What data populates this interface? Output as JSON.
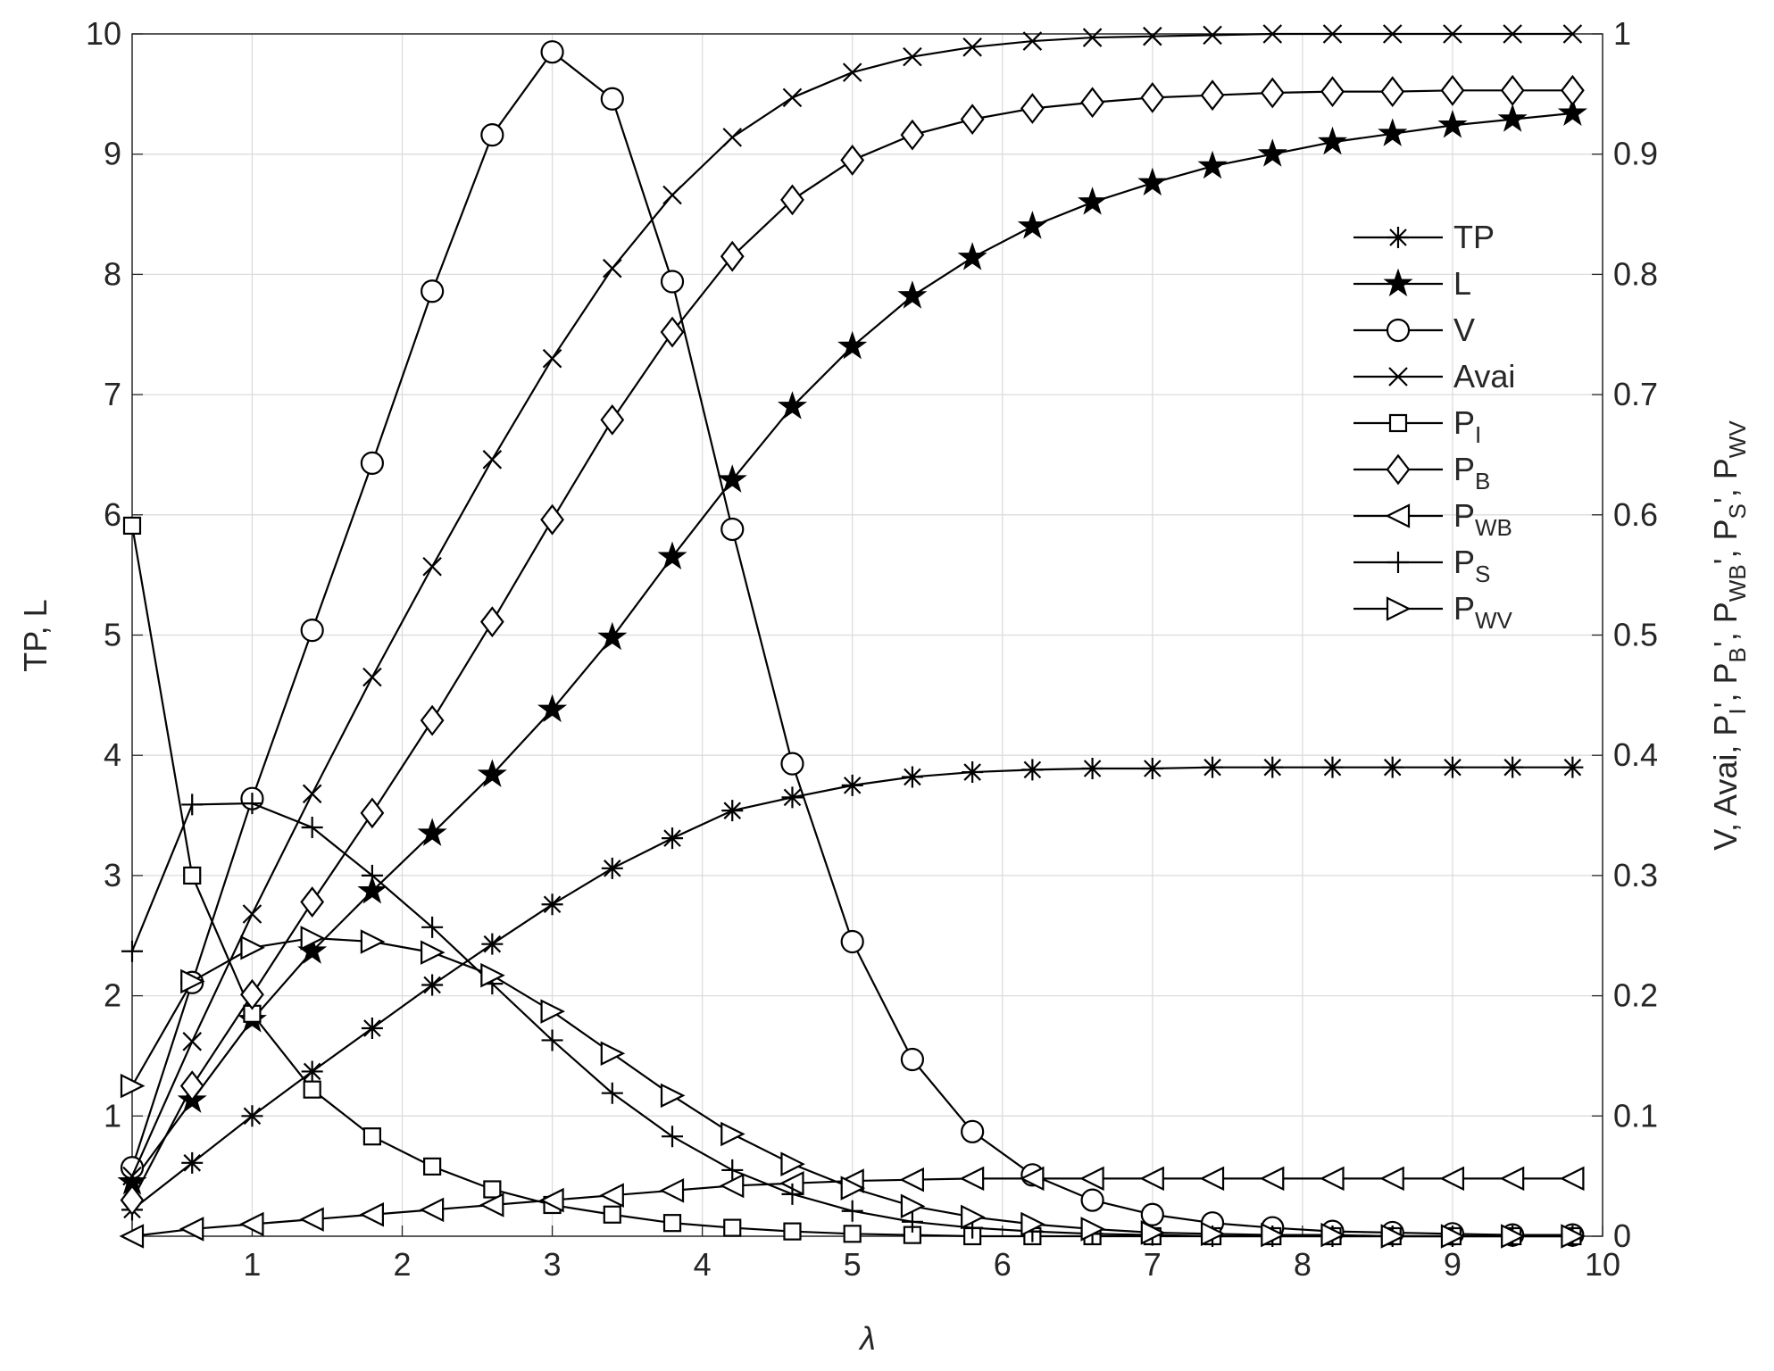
{
  "chart_data": {
    "type": "line",
    "xlabel": "λ",
    "ylabel": "TP, L",
    "y2label_parts": [
      {
        "text": "V, Avai, P",
        "sub": "I"
      },
      {
        "text": "', P",
        "sub": "B"
      },
      {
        "text": "', P",
        "sub": "WB"
      },
      {
        "text": "', P",
        "sub": "S"
      },
      {
        "text": "', P",
        "sub": "WV"
      }
    ],
    "x": [
      0.2,
      0.6,
      1.0,
      1.4,
      1.8,
      2.2,
      2.6,
      3.0,
      3.4,
      3.8,
      4.2,
      4.6,
      5.0,
      5.4,
      5.8,
      6.2,
      6.6,
      7.0,
      7.4,
      7.8,
      8.2,
      8.6,
      9.0,
      9.4,
      9.8
    ],
    "xlim": [
      0.2,
      10
    ],
    "xticks": [
      1,
      2,
      3,
      4,
      5,
      6,
      7,
      8,
      9,
      10
    ],
    "ylim": [
      0,
      10
    ],
    "yticks": [
      1,
      2,
      3,
      4,
      5,
      6,
      7,
      8,
      9,
      10
    ],
    "y2lim": [
      0,
      1
    ],
    "y2ticks": [
      0,
      0.1,
      0.2,
      0.3,
      0.4,
      0.5,
      0.6,
      0.7,
      0.8,
      0.9,
      1
    ],
    "grid": true,
    "series": [
      {
        "name": "TP",
        "marker": "asterisk",
        "color": "#000000",
        "values": [
          0.22,
          0.61,
          1.0,
          1.37,
          1.73,
          2.09,
          2.43,
          2.76,
          3.06,
          3.31,
          3.54,
          3.65,
          3.75,
          3.82,
          3.86,
          3.88,
          3.89,
          3.89,
          3.9,
          3.9,
          3.9,
          3.9,
          3.9,
          3.9,
          3.9
        ]
      },
      {
        "name": "L",
        "marker": "star",
        "color": "#000000",
        "values": [
          0.45,
          1.13,
          1.8,
          2.37,
          2.87,
          3.35,
          3.84,
          4.38,
          4.98,
          5.65,
          6.29,
          6.9,
          7.4,
          7.82,
          8.14,
          8.4,
          8.6,
          8.76,
          8.9,
          9.0,
          9.1,
          9.17,
          9.24,
          9.29,
          9.34
        ]
      },
      {
        "name": "V",
        "marker": "circle",
        "color": "#000000",
        "axis": "y2",
        "values": [
          0.057,
          0.211,
          0.364,
          0.504,
          0.643,
          0.786,
          0.916,
          0.985,
          0.946,
          0.794,
          0.588,
          0.393,
          0.245,
          0.147,
          0.087,
          0.051,
          0.03,
          0.018,
          0.011,
          0.007,
          0.004,
          0.003,
          0.002,
          0.001,
          0.001
        ]
      },
      {
        "name": "Avai",
        "marker": "x",
        "color": "#000000",
        "axis": "y2",
        "values": [
          0.05,
          0.162,
          0.268,
          0.368,
          0.465,
          0.557,
          0.646,
          0.73,
          0.805,
          0.866,
          0.914,
          0.947,
          0.968,
          0.981,
          0.989,
          0.994,
          0.997,
          0.998,
          0.999,
          1.0,
          1.0,
          1.0,
          1.0,
          1.0,
          1.0
        ]
      },
      {
        "name": "P",
        "name_sub": "I",
        "marker": "square",
        "color": "#000000",
        "axis": "y2",
        "values": [
          0.591,
          0.3,
          0.185,
          0.122,
          0.083,
          0.058,
          0.039,
          0.026,
          0.018,
          0.011,
          0.007,
          0.004,
          0.002,
          0.001,
          0,
          0,
          0,
          0,
          0,
          0,
          0,
          0,
          0,
          0,
          0
        ]
      },
      {
        "name": "P",
        "name_sub": "B",
        "marker": "diamond",
        "color": "#000000",
        "axis": "y2",
        "values": [
          0.03,
          0.125,
          0.201,
          0.278,
          0.352,
          0.429,
          0.511,
          0.596,
          0.679,
          0.752,
          0.815,
          0.862,
          0.895,
          0.916,
          0.929,
          0.938,
          0.943,
          0.947,
          0.949,
          0.951,
          0.952,
          0.952,
          0.953,
          0.953,
          0.953
        ]
      },
      {
        "name": "P",
        "name_sub": "WB",
        "marker": "triangle-left",
        "color": "#000000",
        "axis": "y2",
        "values": [
          0.0,
          0.006,
          0.01,
          0.014,
          0.018,
          0.022,
          0.026,
          0.03,
          0.034,
          0.038,
          0.042,
          0.044,
          0.046,
          0.047,
          0.048,
          0.048,
          0.048,
          0.048,
          0.048,
          0.048,
          0.048,
          0.048,
          0.048,
          0.048,
          0.048
        ]
      },
      {
        "name": "P",
        "name_sub": "S",
        "marker": "plus",
        "color": "#000000",
        "axis": "y2",
        "values": [
          0.237,
          0.359,
          0.36,
          0.34,
          0.3,
          0.257,
          0.21,
          0.163,
          0.119,
          0.083,
          0.055,
          0.035,
          0.021,
          0.012,
          0.007,
          0.004,
          0.002,
          0.001,
          0,
          0,
          0,
          0,
          0,
          0,
          0
        ]
      },
      {
        "name": "P",
        "name_sub": "WV",
        "marker": "triangle-right",
        "color": "#000000",
        "axis": "y2",
        "values": [
          0.125,
          0.212,
          0.24,
          0.248,
          0.245,
          0.236,
          0.217,
          0.187,
          0.152,
          0.117,
          0.085,
          0.06,
          0.04,
          0.025,
          0.016,
          0.01,
          0.006,
          0.003,
          0.002,
          0.001,
          0.001,
          0,
          0,
          0,
          0
        ]
      }
    ]
  }
}
